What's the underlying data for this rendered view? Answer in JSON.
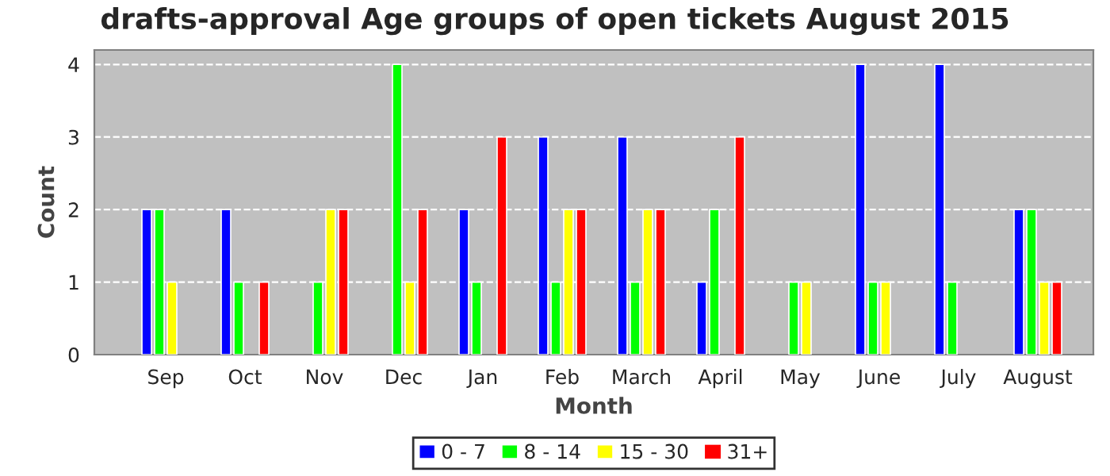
{
  "chart_data": {
    "type": "bar",
    "title": "drafts-approval Age groups of open tickets August 2015",
    "xlabel": "Month",
    "ylabel": "Count",
    "categories": [
      "Sep",
      "Oct",
      "Nov",
      "Dec",
      "Jan",
      "Feb",
      "March",
      "April",
      "May",
      "June",
      "July",
      "August"
    ],
    "series": [
      {
        "name": "0 - 7",
        "color": "#0000ff",
        "values": [
          2,
          2,
          0,
          0,
          2,
          3,
          3,
          1,
          0,
          4,
          4,
          2
        ]
      },
      {
        "name": "8 - 14",
        "color": "#00ff00",
        "values": [
          2,
          1,
          1,
          4,
          1,
          1,
          1,
          2,
          1,
          1,
          1,
          2
        ]
      },
      {
        "name": "15 - 30",
        "color": "#ffff00",
        "values": [
          1,
          0,
          2,
          1,
          0,
          2,
          2,
          0,
          1,
          1,
          0,
          1
        ]
      },
      {
        "name": "31+",
        "color": "#ff0000",
        "values": [
          0,
          1,
          2,
          2,
          3,
          2,
          2,
          3,
          0,
          0,
          0,
          1
        ]
      }
    ],
    "ylim": [
      0,
      4.2
    ],
    "yticks": [
      0,
      1,
      2,
      3,
      4
    ],
    "grid": "y",
    "legend": "bottom"
  }
}
